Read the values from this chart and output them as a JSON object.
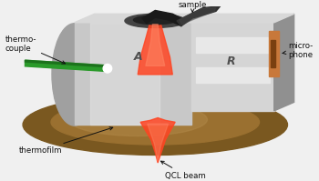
{
  "background_color": "#f0f0f0",
  "labels": {
    "sample": "sample",
    "thermocouple": "thermo-\ncouple",
    "thermofilm": "thermofilm",
    "qcl_beam": "QCL beam",
    "microphone": "micro-\nphone",
    "A": "A",
    "R": "R"
  },
  "colors": {
    "cell_body_mid": "#c8c8c8",
    "cell_body_light": "#e0e0e0",
    "cell_body_dark": "#909090",
    "cell_left_face": "#a0a0a0",
    "cell_top": "#d8d8d8",
    "base_brown_outer": "#7a5820",
    "base_brown_inner": "#9a7030",
    "thermocouple_green": "#2a9a2a",
    "thermocouple_dark": "#1a6a1a",
    "beam_red": "#dd1100",
    "beam_red_mid": "#ff4422",
    "sample_dark": "#1a1a1a",
    "sample_mid": "#333333",
    "microphone_tan": "#c8783a",
    "microphone_dark": "#7a4010",
    "ref_body": "#d5d5d5",
    "ref_light": "#e8e8e8",
    "ref_channel": "#c0c0c0",
    "text_color": "#111111",
    "white": "#ffffff"
  },
  "figsize": [
    3.5,
    1.99
  ],
  "dpi": 100
}
